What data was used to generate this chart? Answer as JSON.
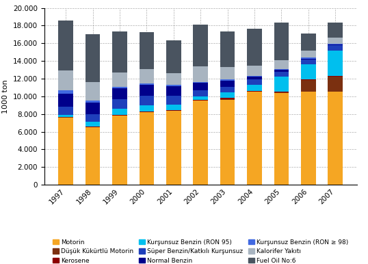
{
  "years": [
    "1997",
    "1998",
    "1999",
    "2000",
    "2001",
    "2002",
    "2003",
    "2004",
    "2005",
    "2006",
    "2007"
  ],
  "series": {
    "Motorin": [
      7600,
      6500,
      7800,
      8200,
      8350,
      9500,
      9600,
      10500,
      10400,
      10550,
      10550
    ],
    "Düşük Kükürtlü Motorin": [
      50,
      50,
      50,
      50,
      50,
      50,
      50,
      50,
      50,
      1300,
      1700
    ],
    "Kerosene": [
      50,
      50,
      50,
      50,
      50,
      50,
      200,
      50,
      50,
      50,
      50
    ],
    "Kurşunsuz Benzin (RON 95)": [
      200,
      500,
      700,
      700,
      600,
      400,
      600,
      700,
      1700,
      1700,
      2900
    ],
    "Süper Benzin/Katkılı Kurşunsuz": [
      900,
      900,
      1100,
      1100,
      1000,
      650,
      600,
      600,
      600,
      600,
      600
    ],
    "Normal Benzin": [
      1500,
      1300,
      1200,
      1200,
      1100,
      850,
      750,
      350,
      200,
      80,
      50
    ],
    "Kurşunsuz Benzin (RON ≥ 98)": [
      400,
      200,
      200,
      150,
      150,
      100,
      150,
      100,
      80,
      100,
      80
    ],
    "Kalorifer Yakıtı": [
      2200,
      2100,
      1600,
      1600,
      1300,
      1800,
      1350,
      1100,
      1000,
      800,
      700
    ],
    "Fuel Oil No:6": [
      5700,
      5400,
      4600,
      4200,
      3700,
      4700,
      4000,
      4200,
      4300,
      1900,
      1700
    ]
  },
  "colors": {
    "Motorin": "#F5A623",
    "Düşük Kükürtlü Motorin": "#7B3010",
    "Kerosene": "#8B0000",
    "Kurşunsuz Benzin (RON 95)": "#00BFEE",
    "Süper Benzin/Katkılı Kurşunsuz": "#1E3FBB",
    "Normal Benzin": "#00008B",
    "Kurşunsuz Benzin (RON ≥ 98)": "#4169E1",
    "Kalorifer Yakıtı": "#A8B4C0",
    "Fuel Oil No:6": "#4A5460"
  },
  "ylabel": "1000 ton",
  "ylim": [
    0,
    20000
  ],
  "yticks": [
    0,
    2000,
    4000,
    6000,
    8000,
    10000,
    12000,
    14000,
    16000,
    18000,
    20000
  ],
  "stack_order": [
    "Motorin",
    "Düşük Kükürtlü Motorin",
    "Kerosene",
    "Kurşunsuz Benzin (RON 95)",
    "Süper Benzin/Katkılı Kurşunsuz",
    "Normal Benzin",
    "Kurşunsuz Benzin (RON ≥ 98)",
    "Kalorifer Yakıtı",
    "Fuel Oil No:6"
  ],
  "legend_order": [
    "Motorin",
    "Düşük Kükürtlü Motorin",
    "Kerosene",
    "Kurşunsuz Benzin (RON 95)",
    "Süper Benzin/Katkılı Kurşunsuz",
    "Normal Benzin",
    "Kurşunsuz Benzin (RON ≥ 98)",
    "Kalorifer Yakıtı",
    "Fuel Oil No:6"
  ]
}
